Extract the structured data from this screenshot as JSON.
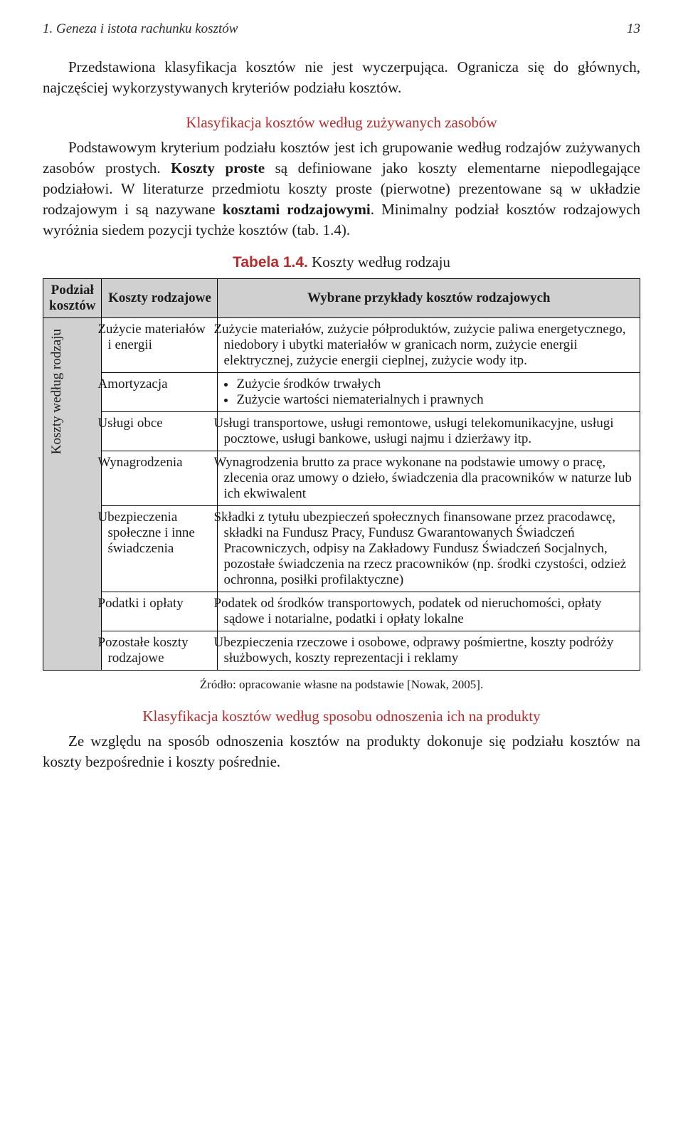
{
  "colors": {
    "accent": "#b42c2c",
    "header_bg": "#d0d0d0",
    "text": "#1a1a1a",
    "border": "#000000"
  },
  "typography": {
    "body_family": "Book Antiqua / Palatino, serif",
    "body_size_pt": 11,
    "caption_label_family": "Helvetica/Arial sans-serif"
  },
  "running_head": {
    "left": "1. Geneza i istota rachunku kosztów",
    "page_number": "13"
  },
  "intro_para": "Przedstawiona klasyfikacja kosztów nie jest wyczerpująca. Ogranicza się do głównych, najczęściej wykorzystywanych kryteriów podziału kosztów.",
  "section1": {
    "title": "Klasyfikacja kosztów według zużywanych zasobów",
    "para": "Podstawowym kryterium podziału kosztów jest ich grupowanie według rodzajów zużywanych zasobów prostych. Koszty proste są definiowane jako koszty elementarne niepodlegające podziałowi. W literaturze przedmiotu koszty proste (pierwotne) prezentowane są w układzie rodzajowym i są nazywane kosztami rodzajowymi. Minimalny podział kosztów rodzajowych wyróżnia siedem pozycji tychże kosztów (tab. 1.4)."
  },
  "table": {
    "type": "table",
    "caption_label": "Tabela 1.4.",
    "caption_text": " Koszty według rodzaju",
    "columns": [
      "Podział kosztów",
      "Koszty rodzajowe",
      "Wybrane przykłady kosztów rodzajowych"
    ],
    "col_widths_pct": [
      4,
      26,
      70
    ],
    "side_label": "Koszty według rodzaju",
    "rows": [
      {
        "name": "Zużycie materiałów i energii",
        "example": "Zużycie materiałów, zużycie półproduktów, zużycie paliwa energetycznego, niedobory i ubytki materiałów w granicach norm, zużycie energii elektrycznej, zużycie energii cieplnej, zużycie wody itp."
      },
      {
        "name": "Amortyzacja",
        "example_bullets": [
          "Zużycie środków trwałych",
          "Zużycie wartości niematerialnych i prawnych"
        ]
      },
      {
        "name": "Usługi obce",
        "example": "Usługi transportowe, usługi remontowe, usługi telekomunikacyjne, usługi pocztowe, usługi bankowe, usługi najmu i dzierżawy itp."
      },
      {
        "name": "Wynagrodzenia",
        "example": "Wynagrodzenia brutto za prace wykonane na podstawie umowy o pracę, zlecenia oraz umowy o dzieło, świadczenia dla pracowników w naturze lub ich ekwiwalent"
      },
      {
        "name": "Ubezpieczenia społeczne i inne świadczenia",
        "example": "Składki z tytułu ubezpieczeń społecznych finansowane przez pracodawcę, składki na Fundusz Pracy, Fundusz Gwarantowanych Świadczeń Pracowniczych, odpisy na Zakładowy Fundusz Świadczeń Socjalnych, pozostałe świadczenia na rzecz pracowników (np. środki czystości, odzież ochronna, posiłki profilaktyczne)"
      },
      {
        "name": "Podatki i opłaty",
        "example": "Podatek od środków transportowych, podatek od nieruchomości, opłaty sądowe i notarialne, podatki i opłaty lokalne"
      },
      {
        "name": "Pozostałe koszty rodzajowe",
        "example": "Ubezpieczenia rzeczowe i osobowe, odprawy pośmiertne, koszty podróży służbowych, koszty reprezentacji i reklamy"
      }
    ],
    "source": "Źródło: opracowanie własne na podstawie [Nowak, 2005]."
  },
  "section2": {
    "title": "Klasyfikacja kosztów według sposobu odnoszenia ich na produkty",
    "para": "Ze względu na sposób odnoszenia kosztów na produkty dokonuje się podziału kosztów na koszty bezpośrednie i koszty pośrednie."
  }
}
